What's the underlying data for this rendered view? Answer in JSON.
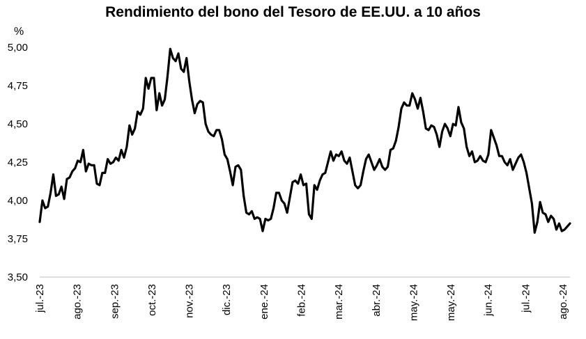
{
  "chart_data": {
    "type": "line",
    "title": "Rendimiento del bono del Tesoro de EE.UU. a 10 años",
    "ylabel": "%",
    "xlabel": "",
    "ylim": [
      3.5,
      5.0
    ],
    "yticks": [
      "3,50",
      "3,75",
      "4,00",
      "4,25",
      "4,50",
      "4,75",
      "5,00"
    ],
    "xticks": [
      "jul.-23",
      "ago.-23",
      "sep.-23",
      "oct.-23",
      "nov.-23",
      "dic.-23",
      "ene.-24",
      "feb.-24",
      "mar.-24",
      "abr.-24",
      "may.-24",
      "may.-24",
      "jun.-24",
      "jul.-24",
      "ago.-24"
    ],
    "grid": false,
    "legend": "none",
    "line_color": "#000000",
    "series": [
      {
        "values": [
          3.86,
          4.0,
          3.95,
          3.96,
          4.05,
          4.17,
          4.03,
          4.04,
          4.09,
          4.01,
          4.14,
          4.15,
          4.19,
          4.21,
          4.26,
          4.25,
          4.33,
          4.19,
          4.24,
          4.23,
          4.23,
          4.11,
          4.1,
          4.18,
          4.18,
          4.27,
          4.24,
          4.25,
          4.28,
          4.26,
          4.33,
          4.28,
          4.35,
          4.49,
          4.43,
          4.47,
          4.58,
          4.56,
          4.6,
          4.8,
          4.73,
          4.8,
          4.8,
          4.59,
          4.7,
          4.62,
          4.66,
          4.81,
          4.99,
          4.93,
          4.91,
          4.96,
          4.86,
          4.84,
          4.93,
          4.78,
          4.66,
          4.57,
          4.63,
          4.65,
          4.64,
          4.5,
          4.45,
          4.43,
          4.42,
          4.46,
          4.46,
          4.4,
          4.3,
          4.27,
          4.19,
          4.1,
          4.22,
          4.23,
          4.2,
          4.03,
          3.92,
          3.91,
          3.93,
          3.88,
          3.89,
          3.88,
          3.8,
          3.88,
          3.87,
          3.88,
          3.95,
          4.05,
          4.05,
          4.0,
          3.98,
          3.92,
          4.02,
          4.12,
          4.13,
          4.11,
          4.17,
          4.1,
          4.11,
          3.91,
          3.88,
          4.1,
          4.07,
          4.13,
          4.17,
          4.18,
          4.25,
          4.32,
          4.26,
          4.3,
          4.29,
          4.32,
          4.26,
          4.24,
          4.28,
          4.19,
          4.1,
          4.08,
          4.1,
          4.19,
          4.27,
          4.3,
          4.25,
          4.2,
          4.23,
          4.27,
          4.22,
          4.2,
          4.22,
          4.33,
          4.34,
          4.39,
          4.48,
          4.6,
          4.64,
          4.62,
          4.62,
          4.7,
          4.66,
          4.6,
          4.67,
          4.58,
          4.47,
          4.46,
          4.49,
          4.48,
          4.43,
          4.35,
          4.45,
          4.5,
          4.47,
          4.42,
          4.5,
          4.49,
          4.61,
          4.51,
          4.47,
          4.35,
          4.29,
          4.32,
          4.25,
          4.26,
          4.29,
          4.26,
          4.25,
          4.3,
          4.46,
          4.41,
          4.36,
          4.29,
          4.29,
          4.25,
          4.23,
          4.27,
          4.2,
          4.24,
          4.28,
          4.3,
          4.25,
          4.18,
          4.08,
          3.98,
          3.79,
          3.86,
          3.99,
          3.92,
          3.91,
          3.86,
          3.9,
          3.88,
          3.81,
          3.85,
          3.8,
          3.81,
          3.83,
          3.85
        ]
      }
    ]
  }
}
